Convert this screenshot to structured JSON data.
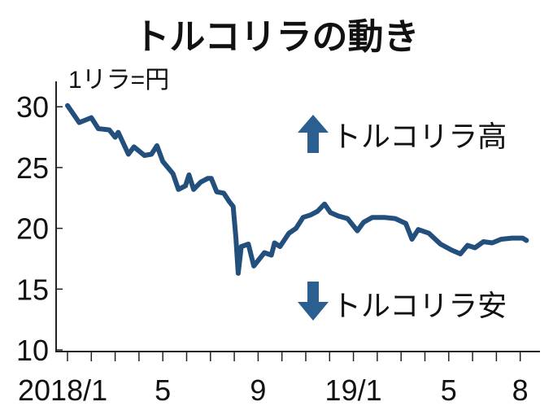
{
  "chart_data": {
    "type": "line",
    "title": "トルコリラの動き",
    "ylabel": "1リラ=円",
    "ylim": [
      10,
      30
    ],
    "yticks": [
      10,
      15,
      20,
      25,
      30
    ],
    "xlim_months_from": "2018/1",
    "xtick_labels": [
      {
        "month": "2018/1",
        "label": "2018/1"
      },
      {
        "month": "2018/5",
        "label": "5"
      },
      {
        "month": "2018/9",
        "label": "9"
      },
      {
        "month": "2019/1",
        "label": "19/1"
      },
      {
        "month": "2019/5",
        "label": "5"
      },
      {
        "month": "2019/8",
        "label": "8"
      }
    ],
    "minor_ticks": "monthly",
    "grid": false,
    "annotations": {
      "up": "トルコリラ高",
      "down": "トルコリラ安"
    },
    "colors": {
      "line": "#234f7d",
      "arrow": "#2a5f8f"
    },
    "series": [
      {
        "points": [
          [
            "2018-01-01",
            30.1
          ],
          [
            "2018-01-16",
            28.7
          ],
          [
            "2018-02-01",
            29.1
          ],
          [
            "2018-02-10",
            28.2
          ],
          [
            "2018-02-24",
            28.1
          ],
          [
            "2018-03-01",
            27.5
          ],
          [
            "2018-03-05",
            27.9
          ],
          [
            "2018-03-18",
            26.1
          ],
          [
            "2018-03-25",
            26.7
          ],
          [
            "2018-04-08",
            26.0
          ],
          [
            "2018-04-17",
            26.1
          ],
          [
            "2018-04-24",
            26.8
          ],
          [
            "2018-05-01",
            25.5
          ],
          [
            "2018-05-14",
            24.5
          ],
          [
            "2018-05-21",
            23.2
          ],
          [
            "2018-05-30",
            23.5
          ],
          [
            "2018-06-04",
            24.4
          ],
          [
            "2018-06-10",
            23.2
          ],
          [
            "2018-06-19",
            23.8
          ],
          [
            "2018-06-28",
            24.1
          ],
          [
            "2018-07-02",
            24.1
          ],
          [
            "2018-07-09",
            23.0
          ],
          [
            "2018-07-18",
            22.9
          ],
          [
            "2018-07-25",
            22.2
          ],
          [
            "2018-07-30",
            21.8
          ],
          [
            "2018-08-03",
            19.3
          ],
          [
            "2018-08-06",
            16.3
          ],
          [
            "2018-08-10",
            18.5
          ],
          [
            "2018-08-19",
            18.7
          ],
          [
            "2018-08-26",
            16.9
          ],
          [
            "2018-09-09",
            18.0
          ],
          [
            "2018-09-18",
            17.8
          ],
          [
            "2018-09-22",
            18.8
          ],
          [
            "2018-09-29",
            18.5
          ],
          [
            "2018-10-10",
            19.6
          ],
          [
            "2018-10-19",
            20.0
          ],
          [
            "2018-10-28",
            20.9
          ],
          [
            "2018-11-07",
            21.1
          ],
          [
            "2018-11-16",
            21.4
          ],
          [
            "2018-11-25",
            22.0
          ],
          [
            "2018-12-02",
            21.3
          ],
          [
            "2018-12-13",
            21.0
          ],
          [
            "2018-12-24",
            20.8
          ],
          [
            "2019-01-06",
            19.8
          ],
          [
            "2019-01-14",
            20.5
          ],
          [
            "2019-01-25",
            20.9
          ],
          [
            "2019-02-10",
            20.9
          ],
          [
            "2019-02-24",
            20.8
          ],
          [
            "2019-03-07",
            20.4
          ],
          [
            "2019-03-15",
            19.1
          ],
          [
            "2019-03-23",
            19.9
          ],
          [
            "2019-04-06",
            19.6
          ],
          [
            "2019-04-21",
            18.7
          ],
          [
            "2019-05-05",
            18.2
          ],
          [
            "2019-05-16",
            17.9
          ],
          [
            "2019-05-25",
            18.6
          ],
          [
            "2019-06-04",
            18.4
          ],
          [
            "2019-06-15",
            18.9
          ],
          [
            "2019-06-26",
            18.8
          ],
          [
            "2019-07-07",
            19.1
          ],
          [
            "2019-07-21",
            19.2
          ],
          [
            "2019-08-04",
            19.2
          ],
          [
            "2019-08-09",
            19.0
          ]
        ]
      }
    ]
  }
}
